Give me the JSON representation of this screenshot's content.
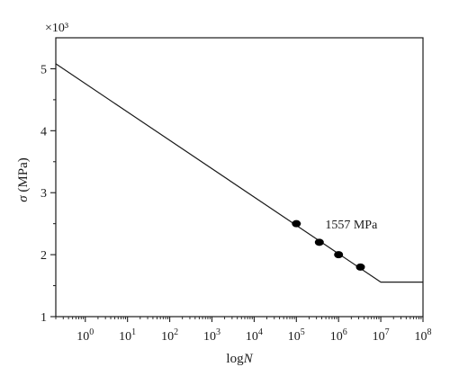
{
  "chart_data": {
    "type": "line",
    "xlabel": "logN",
    "ylabel": "σ (MPa)",
    "y_multiplier": "×10³",
    "x_scale": "log",
    "xlim": [
      0.2,
      100000000
    ],
    "ylim": [
      1000,
      5500
    ],
    "x_tick_exponents": [
      0,
      1,
      2,
      3,
      4,
      5,
      6,
      7,
      8
    ],
    "y_ticks": [
      1,
      2,
      3,
      4,
      5
    ],
    "grid": false,
    "series": [
      {
        "type": "line",
        "points": [
          {
            "x": 0.2,
            "y": 5080
          },
          {
            "x": 10000000,
            "y": 1557
          },
          {
            "x": 100000000,
            "y": 1557
          }
        ]
      },
      {
        "type": "scatter",
        "points": [
          {
            "x": 100000,
            "y": 2500
          },
          {
            "x": 350000,
            "y": 2200
          },
          {
            "x": 1000000,
            "y": 2000
          },
          {
            "x": 3300000,
            "y": 1800
          }
        ]
      }
    ],
    "annotations": [
      {
        "text": "1557 MPa",
        "x": 2000000,
        "y": 2420
      }
    ]
  }
}
